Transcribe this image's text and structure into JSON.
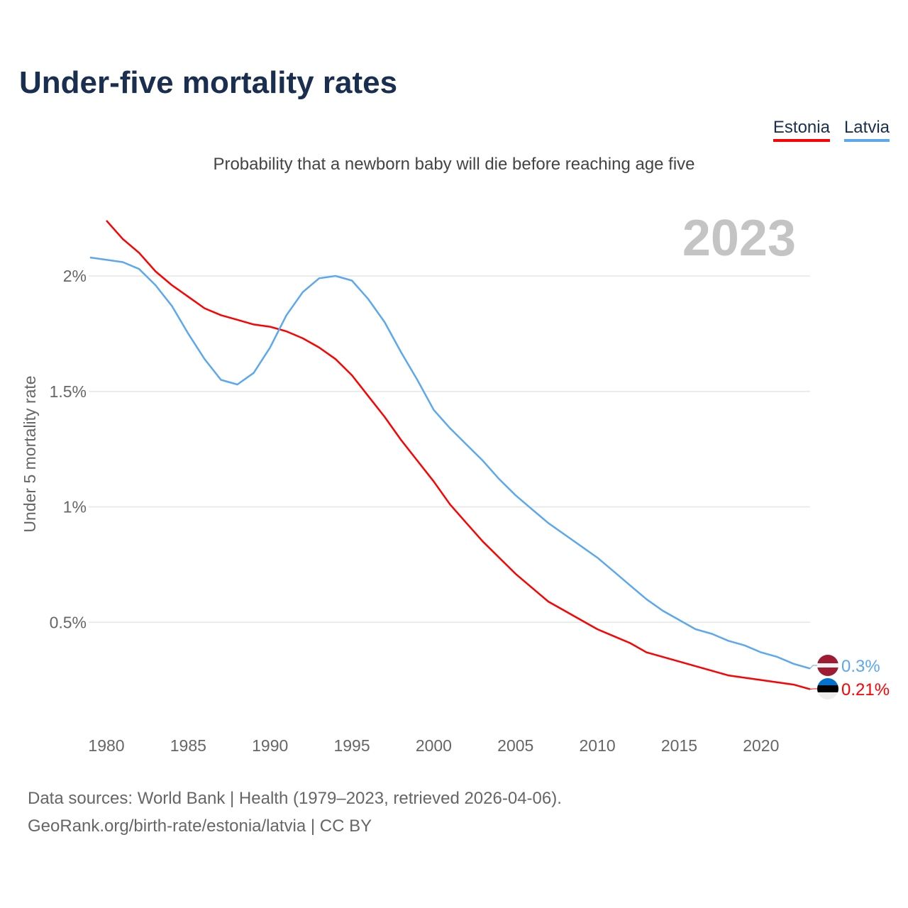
{
  "title": "Under-five mortality rates",
  "subtitle": "Probability that a newborn baby will die before reaching age five",
  "source_line1": "Data sources: World Bank | Health (1979–2023, retrieved 2026-04-06).",
  "source_line2": "GeoRank.org/birth-rate/estonia/latvia | CC BY",
  "chart_data": {
    "type": "line",
    "title": "Under-five mortality rates",
    "subtitle": "Probability that a newborn baby will die before reaching age five",
    "xlabel": "",
    "ylabel": "Under 5 mortality rate",
    "year_label": "2023",
    "xlim": [
      1979,
      2023
    ],
    "ylim": [
      0,
      2.3
    ],
    "x_ticks": [
      1980,
      1985,
      1990,
      1995,
      2000,
      2005,
      2010,
      2015,
      2020
    ],
    "y_ticks": [
      {
        "v": 0.5,
        "label": "0.5%"
      },
      {
        "v": 1,
        "label": "1%"
      },
      {
        "v": 1.5,
        "label": "1.5%"
      },
      {
        "v": 2,
        "label": "2%"
      }
    ],
    "grid": true,
    "legend_position": "top-right",
    "series": [
      {
        "name": "Estonia",
        "color": "#ff0000",
        "end_label": "0.21%",
        "start": 1980,
        "values": [
          2.24,
          2.16,
          2.1,
          2.02,
          1.96,
          1.91,
          1.86,
          1.83,
          1.81,
          1.79,
          1.78,
          1.76,
          1.73,
          1.69,
          1.64,
          1.57,
          1.48,
          1.39,
          1.29,
          1.2,
          1.11,
          1.01,
          0.93,
          0.85,
          0.78,
          0.71,
          0.65,
          0.59,
          0.55,
          0.51,
          0.47,
          0.44,
          0.41,
          0.37,
          0.35,
          0.33,
          0.31,
          0.29,
          0.27,
          0.26,
          0.25,
          0.24,
          0.23,
          0.21
        ]
      },
      {
        "name": "Latvia",
        "color": "#5ba8ef",
        "end_label": "0.3%",
        "start": 1979,
        "values": [
          2.08,
          2.07,
          2.06,
          2.03,
          1.96,
          1.87,
          1.75,
          1.64,
          1.55,
          1.53,
          1.58,
          1.69,
          1.83,
          1.93,
          1.99,
          2.0,
          1.98,
          1.9,
          1.8,
          1.67,
          1.55,
          1.42,
          1.34,
          1.27,
          1.2,
          1.12,
          1.05,
          0.99,
          0.93,
          0.88,
          0.83,
          0.78,
          0.72,
          0.66,
          0.6,
          0.55,
          0.51,
          0.47,
          0.45,
          0.42,
          0.4,
          0.37,
          0.35,
          0.32,
          0.3
        ]
      }
    ]
  }
}
